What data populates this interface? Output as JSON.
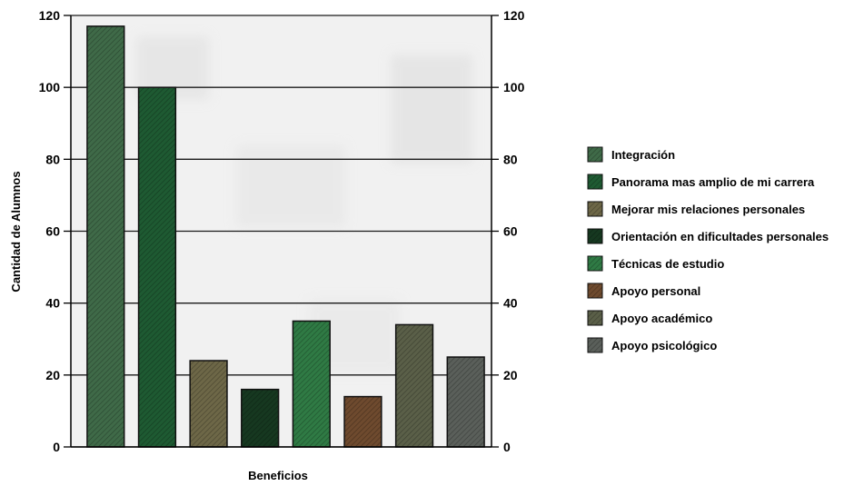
{
  "chart_data": {
    "type": "bar",
    "title": "",
    "xlabel": "Beneficios",
    "ylabel": "Cantidad de Alumnos",
    "ylim": [
      0,
      120
    ],
    "yticks": [
      0,
      20,
      40,
      60,
      80,
      100,
      120
    ],
    "grid": true,
    "secondary_y_axis": true,
    "legend_position": "right",
    "categories": [
      "Integración",
      "Panorama mas amplio de mi carrera",
      "Mejorar mis relaciones personales",
      "Orientación en dificultades personales",
      "Técnicas de estudio",
      "Apoyo personal",
      "Apoyo académico",
      "Apoyo psicológico"
    ],
    "values": [
      117,
      100,
      24,
      16,
      35,
      14,
      34,
      25
    ],
    "colors": [
      "#3f6a48",
      "#1e5a32",
      "#6d6747",
      "#163820",
      "#2f7a44",
      "#6e4a2e",
      "#5a5f48",
      "#5a5f5a"
    ]
  }
}
